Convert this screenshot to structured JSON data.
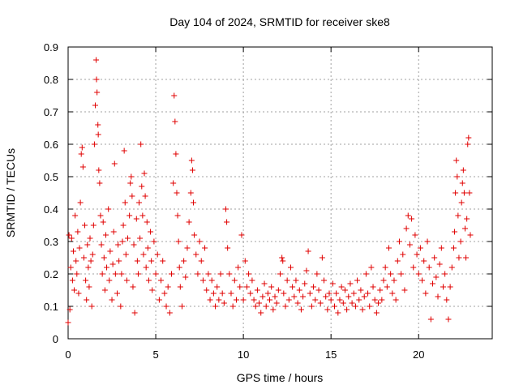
{
  "chart_data": {
    "type": "scatter",
    "title": "Day 104 of 2024, SRMTID for receiver ske8",
    "xlabel": "GPS time / hours",
    "ylabel": "SRMTID / TECUs",
    "xlim": [
      0,
      24.2
    ],
    "ylim": [
      0,
      0.9
    ],
    "x_ticks": [
      0,
      5,
      10,
      15,
      20
    ],
    "x_tick_labels": [
      "0",
      "5",
      "10",
      "15",
      "20"
    ],
    "y_ticks": [
      0,
      0.1,
      0.2,
      0.3,
      0.4,
      0.5,
      0.6,
      0.7,
      0.8,
      0.9
    ],
    "y_tick_labels": [
      "0",
      "0.1",
      "0.2",
      "0.3",
      "0.4",
      "0.5",
      "0.6",
      "0.7",
      "0.8",
      "0.9"
    ],
    "grid": true,
    "marker": "+",
    "color": "#e00000",
    "series": [
      {
        "name": "SRMTID",
        "points": [
          [
            0.0,
            0.05
          ],
          [
            0.05,
            0.32
          ],
          [
            0.1,
            0.09
          ],
          [
            0.15,
            0.22
          ],
          [
            0.2,
            0.31
          ],
          [
            0.25,
            0.18
          ],
          [
            0.3,
            0.27
          ],
          [
            0.35,
            0.15
          ],
          [
            0.4,
            0.38
          ],
          [
            0.45,
            0.24
          ],
          [
            0.5,
            0.2
          ],
          [
            0.55,
            0.33
          ],
          [
            0.6,
            0.14
          ],
          [
            0.65,
            0.28
          ],
          [
            0.7,
            0.42
          ],
          [
            0.75,
            0.57
          ],
          [
            0.8,
            0.59
          ],
          [
            0.85,
            0.53
          ],
          [
            0.9,
            0.25
          ],
          [
            0.95,
            0.35
          ],
          [
            1.0,
            0.18
          ],
          [
            1.05,
            0.12
          ],
          [
            1.1,
            0.29
          ],
          [
            1.15,
            0.22
          ],
          [
            1.2,
            0.16
          ],
          [
            1.25,
            0.31
          ],
          [
            1.3,
            0.24
          ],
          [
            1.35,
            0.1
          ],
          [
            1.4,
            0.26
          ],
          [
            1.45,
            0.35
          ],
          [
            1.5,
            0.6
          ],
          [
            1.55,
            0.72
          ],
          [
            1.6,
            0.86
          ],
          [
            1.62,
            0.8
          ],
          [
            1.65,
            0.76
          ],
          [
            1.7,
            0.66
          ],
          [
            1.72,
            0.63
          ],
          [
            1.75,
            0.52
          ],
          [
            1.8,
            0.48
          ],
          [
            1.85,
            0.38
          ],
          [
            1.9,
            0.29
          ],
          [
            1.95,
            0.2
          ],
          [
            2.0,
            0.36
          ],
          [
            2.05,
            0.25
          ],
          [
            2.1,
            0.15
          ],
          [
            2.15,
            0.32
          ],
          [
            2.2,
            0.22
          ],
          [
            2.3,
            0.4
          ],
          [
            2.35,
            0.18
          ],
          [
            2.4,
            0.27
          ],
          [
            2.5,
            0.12
          ],
          [
            2.55,
            0.23
          ],
          [
            2.6,
            0.33
          ],
          [
            2.65,
            0.54
          ],
          [
            2.7,
            0.2
          ],
          [
            2.8,
            0.14
          ],
          [
            2.85,
            0.29
          ],
          [
            2.9,
            0.24
          ],
          [
            3.0,
            0.1
          ],
          [
            3.05,
            0.2
          ],
          [
            3.1,
            0.3
          ],
          [
            3.15,
            0.35
          ],
          [
            3.2,
            0.58
          ],
          [
            3.25,
            0.42
          ],
          [
            3.3,
            0.26
          ],
          [
            3.35,
            0.18
          ],
          [
            3.4,
            0.31
          ],
          [
            3.5,
            0.38
          ],
          [
            3.55,
            0.48
          ],
          [
            3.6,
            0.5
          ],
          [
            3.65,
            0.44
          ],
          [
            3.7,
            0.16
          ],
          [
            3.75,
            0.29
          ],
          [
            3.8,
            0.08
          ],
          [
            3.9,
            0.37
          ],
          [
            3.95,
            0.24
          ],
          [
            4.0,
            0.2
          ],
          [
            4.05,
            0.42
          ],
          [
            4.1,
            0.31
          ],
          [
            4.15,
            0.6
          ],
          [
            4.2,
            0.47
          ],
          [
            4.25,
            0.38
          ],
          [
            4.3,
            0.26
          ],
          [
            4.35,
            0.51
          ],
          [
            4.4,
            0.44
          ],
          [
            4.45,
            0.22
          ],
          [
            4.5,
            0.36
          ],
          [
            4.55,
            0.28
          ],
          [
            4.6,
            0.18
          ],
          [
            4.7,
            0.33
          ],
          [
            4.75,
            0.24
          ],
          [
            4.8,
            0.15
          ],
          [
            4.9,
            0.3
          ],
          [
            5.0,
            0.2
          ],
          [
            5.1,
            0.26
          ],
          [
            5.2,
            0.12
          ],
          [
            5.3,
            0.18
          ],
          [
            5.4,
            0.24
          ],
          [
            5.5,
            0.14
          ],
          [
            5.6,
            0.1
          ],
          [
            5.7,
            0.16
          ],
          [
            5.8,
            0.08
          ],
          [
            5.9,
            0.2
          ],
          [
            6.0,
            0.48
          ],
          [
            6.05,
            0.75
          ],
          [
            6.1,
            0.67
          ],
          [
            6.15,
            0.57
          ],
          [
            6.2,
            0.45
          ],
          [
            6.25,
            0.38
          ],
          [
            6.3,
            0.3
          ],
          [
            6.35,
            0.22
          ],
          [
            6.4,
            0.16
          ],
          [
            6.5,
            0.1
          ],
          [
            6.6,
            0.24
          ],
          [
            6.7,
            0.19
          ],
          [
            6.8,
            0.28
          ],
          [
            6.9,
            0.36
          ],
          [
            7.0,
            0.45
          ],
          [
            7.05,
            0.55
          ],
          [
            7.1,
            0.52
          ],
          [
            7.15,
            0.42
          ],
          [
            7.2,
            0.32
          ],
          [
            7.3,
            0.26
          ],
          [
            7.4,
            0.2
          ],
          [
            7.5,
            0.3
          ],
          [
            7.6,
            0.24
          ],
          [
            7.7,
            0.18
          ],
          [
            7.8,
            0.28
          ],
          [
            7.9,
            0.15
          ],
          [
            8.0,
            0.2
          ],
          [
            8.1,
            0.12
          ],
          [
            8.2,
            0.18
          ],
          [
            8.3,
            0.14
          ],
          [
            8.4,
            0.1
          ],
          [
            8.5,
            0.16
          ],
          [
            8.6,
            0.12
          ],
          [
            8.7,
            0.2
          ],
          [
            8.8,
            0.14
          ],
          [
            8.9,
            0.11
          ],
          [
            9.0,
            0.4
          ],
          [
            9.05,
            0.36
          ],
          [
            9.1,
            0.28
          ],
          [
            9.2,
            0.2
          ],
          [
            9.3,
            0.14
          ],
          [
            9.4,
            0.1
          ],
          [
            9.5,
            0.18
          ],
          [
            9.6,
            0.12
          ],
          [
            9.7,
            0.22
          ],
          [
            9.8,
            0.16
          ],
          [
            9.9,
            0.32
          ],
          [
            10.0,
            0.12
          ],
          [
            10.1,
            0.24
          ],
          [
            10.2,
            0.16
          ],
          [
            10.3,
            0.2
          ],
          [
            10.4,
            0.14
          ],
          [
            10.5,
            0.18
          ],
          [
            10.6,
            0.12
          ],
          [
            10.7,
            0.1
          ],
          [
            10.8,
            0.15
          ],
          [
            10.9,
            0.11
          ],
          [
            11.0,
            0.08
          ],
          [
            11.1,
            0.13
          ],
          [
            11.2,
            0.17
          ],
          [
            11.3,
            0.1
          ],
          [
            11.4,
            0.14
          ],
          [
            11.5,
            0.12
          ],
          [
            11.6,
            0.16
          ],
          [
            11.7,
            0.09
          ],
          [
            11.8,
            0.13
          ],
          [
            11.9,
            0.11
          ],
          [
            12.0,
            0.15
          ],
          [
            12.1,
            0.2
          ],
          [
            12.2,
            0.25
          ],
          [
            12.25,
            0.24
          ],
          [
            12.3,
            0.14
          ],
          [
            12.4,
            0.1
          ],
          [
            12.5,
            0.18
          ],
          [
            12.6,
            0.12
          ],
          [
            12.7,
            0.22
          ],
          [
            12.8,
            0.16
          ],
          [
            12.9,
            0.13
          ],
          [
            13.0,
            0.18
          ],
          [
            13.1,
            0.11
          ],
          [
            13.2,
            0.15
          ],
          [
            13.3,
            0.09
          ],
          [
            13.4,
            0.13
          ],
          [
            13.5,
            0.17
          ],
          [
            13.6,
            0.21
          ],
          [
            13.7,
            0.27
          ],
          [
            13.8,
            0.14
          ],
          [
            13.9,
            0.1
          ],
          [
            14.0,
            0.16
          ],
          [
            14.1,
            0.12
          ],
          [
            14.2,
            0.2
          ],
          [
            14.3,
            0.15
          ],
          [
            14.4,
            0.11
          ],
          [
            14.5,
            0.25
          ],
          [
            14.6,
            0.18
          ],
          [
            14.7,
            0.13
          ],
          [
            14.8,
            0.09
          ],
          [
            14.9,
            0.14
          ],
          [
            15.0,
            0.12
          ],
          [
            15.1,
            0.17
          ],
          [
            15.2,
            0.1
          ],
          [
            15.3,
            0.14
          ],
          [
            15.4,
            0.08
          ],
          [
            15.5,
            0.12
          ],
          [
            15.6,
            0.16
          ],
          [
            15.7,
            0.11
          ],
          [
            15.8,
            0.15
          ],
          [
            15.9,
            0.09
          ],
          [
            16.0,
            0.13
          ],
          [
            16.1,
            0.17
          ],
          [
            16.2,
            0.11
          ],
          [
            16.3,
            0.14
          ],
          [
            16.4,
            0.1
          ],
          [
            16.5,
            0.18
          ],
          [
            16.6,
            0.12
          ],
          [
            16.7,
            0.15
          ],
          [
            16.8,
            0.09
          ],
          [
            16.9,
            0.13
          ],
          [
            17.0,
            0.2
          ],
          [
            17.1,
            0.14
          ],
          [
            17.2,
            0.1
          ],
          [
            17.3,
            0.22
          ],
          [
            17.4,
            0.16
          ],
          [
            17.5,
            0.12
          ],
          [
            17.6,
            0.08
          ],
          [
            17.7,
            0.11
          ],
          [
            17.8,
            0.15
          ],
          [
            17.9,
            0.12
          ],
          [
            18.0,
            0.18
          ],
          [
            18.1,
            0.22
          ],
          [
            18.2,
            0.16
          ],
          [
            18.3,
            0.28
          ],
          [
            18.4,
            0.2
          ],
          [
            18.5,
            0.14
          ],
          [
            18.6,
            0.18
          ],
          [
            18.7,
            0.12
          ],
          [
            18.8,
            0.24
          ],
          [
            18.9,
            0.3
          ],
          [
            19.0,
            0.2
          ],
          [
            19.1,
            0.26
          ],
          [
            19.2,
            0.15
          ],
          [
            19.3,
            0.34
          ],
          [
            19.4,
            0.38
          ],
          [
            19.5,
            0.29
          ],
          [
            19.6,
            0.37
          ],
          [
            19.7,
            0.22
          ],
          [
            19.8,
            0.32
          ],
          [
            19.9,
            0.26
          ],
          [
            20.0,
            0.2
          ],
          [
            20.1,
            0.28
          ],
          [
            20.2,
            0.18
          ],
          [
            20.3,
            0.24
          ],
          [
            20.4,
            0.14
          ],
          [
            20.5,
            0.3
          ],
          [
            20.6,
            0.22
          ],
          [
            20.7,
            0.06
          ],
          [
            20.8,
            0.17
          ],
          [
            20.9,
            0.25
          ],
          [
            21.0,
            0.19
          ],
          [
            21.1,
            0.13
          ],
          [
            21.2,
            0.23
          ],
          [
            21.3,
            0.28
          ],
          [
            21.4,
            0.16
          ],
          [
            21.5,
            0.2
          ],
          [
            21.6,
            0.12
          ],
          [
            21.7,
            0.06
          ],
          [
            21.8,
            0.16
          ],
          [
            21.9,
            0.22
          ],
          [
            22.0,
            0.28
          ],
          [
            22.05,
            0.33
          ],
          [
            22.1,
            0.45
          ],
          [
            22.15,
            0.55
          ],
          [
            22.2,
            0.5
          ],
          [
            22.25,
            0.38
          ],
          [
            22.3,
            0.25
          ],
          [
            22.4,
            0.3
          ],
          [
            22.45,
            0.42
          ],
          [
            22.5,
            0.48
          ],
          [
            22.55,
            0.52
          ],
          [
            22.6,
            0.45
          ],
          [
            22.65,
            0.34
          ],
          [
            22.7,
            0.25
          ],
          [
            22.75,
            0.37
          ],
          [
            22.8,
            0.6
          ],
          [
            22.85,
            0.62
          ],
          [
            22.9,
            0.45
          ],
          [
            22.95,
            0.32
          ]
        ]
      }
    ]
  }
}
